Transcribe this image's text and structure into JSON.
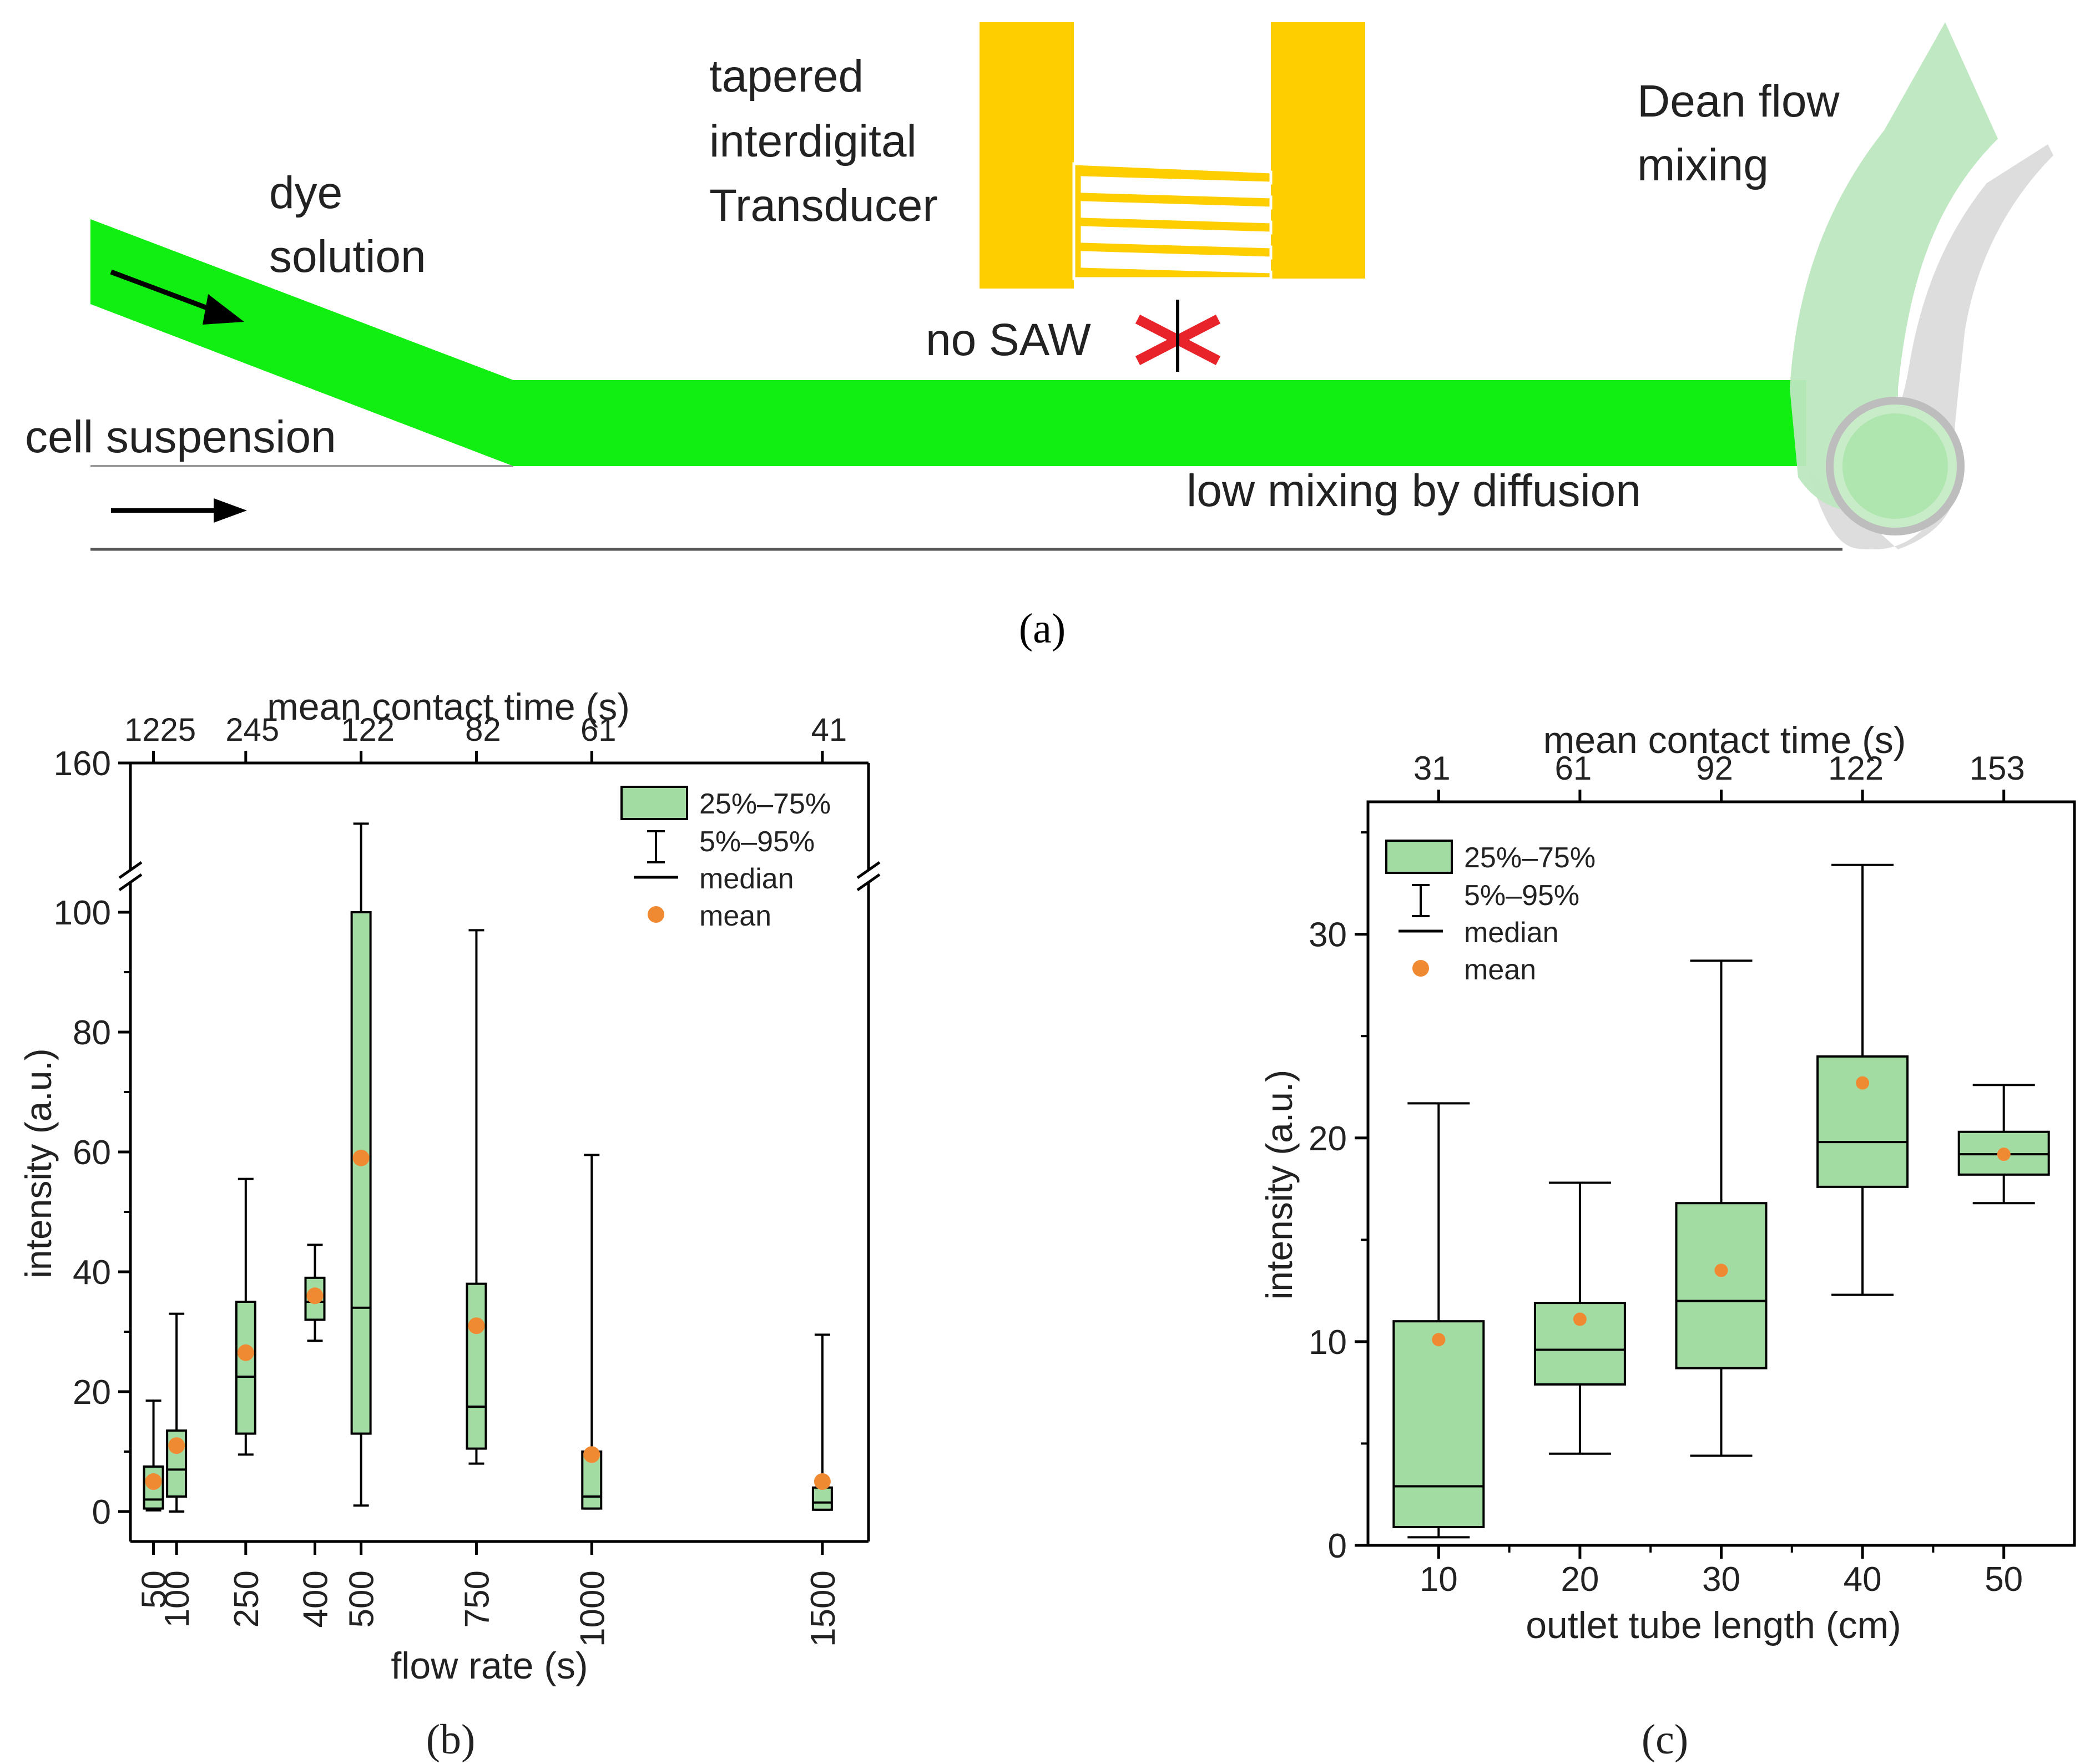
{
  "colors": {
    "channel_green": "#11ee11",
    "box_fill": "#a3dca3",
    "box_stroke": "#000000",
    "mean_dot": "#f08a32",
    "electrode": "#ffce00",
    "tube_green": "#bde7c0",
    "tube_gray": "#d9d9d9",
    "cross_red": "#e8232a"
  },
  "schematic": {
    "label_dye_1": "dye",
    "label_dye_2": "solution",
    "label_cells": "cell suspension",
    "label_idt_1": "tapered",
    "label_idt_2": "interdigital",
    "label_idt_3": "Transducer",
    "label_no_saw": "no SAW",
    "label_diffusion": "low mixing by diffusion",
    "label_dean_1": "Dean flow",
    "label_dean_2": "mixing",
    "panel_label": "(a)",
    "icons": [
      "arrow-right-icon",
      "cross-icon"
    ]
  },
  "chart_data": [
    {
      "type": "box",
      "panel_label": "(b)",
      "xlabel": "flow rate (s)",
      "ylabel": "intensity (a.u.)",
      "top_axis_label": "mean contact time (s)",
      "x_ticks": [
        50,
        100,
        250,
        400,
        500,
        750,
        1000,
        1500
      ],
      "x_tick_labels": [
        "50",
        "100",
        "250",
        "400",
        "500",
        "750",
        "1000",
        "1500"
      ],
      "top_ticks": [
        {
          "x": 50,
          "label": "1225"
        },
        {
          "x": 250,
          "label": "245"
        },
        {
          "x": 500,
          "label": "122"
        },
        {
          "x": 750,
          "label": "82"
        },
        {
          "x": 1000,
          "label": "61"
        },
        {
          "x": 1500,
          "label": "41"
        }
      ],
      "xlim": [
        0,
        1600
      ],
      "y_lower_range": [
        -5,
        105
      ],
      "y_upper_range": [
        130,
        160
      ],
      "y_ticks": [
        0,
        20,
        40,
        60,
        80,
        100,
        160
      ],
      "y_tick_labels": [
        "0",
        "20",
        "40",
        "60",
        "80",
        "100",
        "160"
      ],
      "axis_break": true,
      "legend": {
        "position": "top-right",
        "box": "25%–75%",
        "whisker": "5%–95%",
        "median": "median",
        "mean": "mean"
      },
      "series": [
        {
          "x": 50,
          "p5": 0.2,
          "q1": 0.5,
          "median": 2,
          "q3": 7.5,
          "p95": 18.5,
          "mean": 5
        },
        {
          "x": 100,
          "p5": 0,
          "q1": 2.5,
          "median": 7,
          "q3": 13.5,
          "p95": 33,
          "mean": 11
        },
        {
          "x": 250,
          "p5": 9.5,
          "q1": 13,
          "median": 22.5,
          "q3": 35,
          "p95": 55.5,
          "mean": 26.5
        },
        {
          "x": 400,
          "p5": 28.5,
          "q1": 32,
          "median": 35,
          "q3": 39,
          "p95": 44.5,
          "mean": 36
        },
        {
          "x": 500,
          "p5": 1,
          "q1": 13,
          "median": 34,
          "q3": 100,
          "p95": 143,
          "mean": 59
        },
        {
          "x": 750,
          "p5": 8,
          "q1": 10.5,
          "median": 17.5,
          "q3": 38,
          "p95": 97,
          "mean": 31
        },
        {
          "x": 1000,
          "p5": 0.5,
          "q1": 0.5,
          "median": 2.5,
          "q3": 10,
          "p95": 59.5,
          "mean": 9.5
        },
        {
          "x": 1500,
          "p5": 0.3,
          "q1": 0.3,
          "median": 1.5,
          "q3": 4,
          "p95": 29.5,
          "mean": 5
        }
      ]
    },
    {
      "type": "box",
      "panel_label": "(c)",
      "xlabel": "outlet tube length (cm)",
      "ylabel": "intensity (a.u.)",
      "top_axis_label": "mean contact time (s)",
      "x_ticks": [
        10,
        20,
        30,
        40,
        50
      ],
      "x_tick_labels": [
        "10",
        "20",
        "30",
        "40",
        "50"
      ],
      "top_ticks": [
        {
          "x": 10,
          "label": "31"
        },
        {
          "x": 20,
          "label": "61"
        },
        {
          "x": 30,
          "label": "92"
        },
        {
          "x": 40,
          "label": "122"
        },
        {
          "x": 50,
          "label": "153"
        }
      ],
      "xlim": [
        5,
        55
      ],
      "ylim": [
        0,
        36.5
      ],
      "y_ticks": [
        0,
        10,
        20,
        30
      ],
      "y_tick_labels": [
        "0",
        "10",
        "20",
        "30"
      ],
      "legend": {
        "position": "top-left",
        "box": "25%–75%",
        "whisker": "5%–95%",
        "median": "median",
        "mean": "mean"
      },
      "series": [
        {
          "x": 10,
          "p5": 0.4,
          "q1": 0.9,
          "median": 2.9,
          "q3": 11,
          "p95": 21.7,
          "mean": 10.1
        },
        {
          "x": 20,
          "p5": 4.5,
          "q1": 7.9,
          "median": 9.6,
          "q3": 11.9,
          "p95": 17.8,
          "mean": 11.1
        },
        {
          "x": 30,
          "p5": 4.4,
          "q1": 8.7,
          "median": 12,
          "q3": 16.8,
          "p95": 28.7,
          "mean": 13.5
        },
        {
          "x": 40,
          "p5": 12.3,
          "q1": 17.6,
          "median": 19.8,
          "q3": 24,
          "p95": 33.4,
          "mean": 22.7
        },
        {
          "x": 50,
          "p5": 16.8,
          "q1": 18.2,
          "median": 19.2,
          "q3": 20.3,
          "p95": 22.6,
          "mean": 19.2
        }
      ]
    }
  ]
}
